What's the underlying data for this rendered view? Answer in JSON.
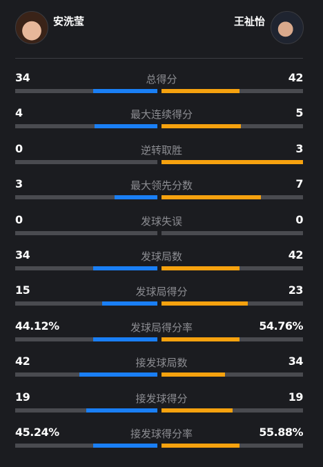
{
  "players": {
    "left": {
      "name": "安洗莹"
    },
    "right": {
      "name": "王祉怡"
    }
  },
  "colors": {
    "left": "#1a7ff5",
    "right": "#f6a20f",
    "track": "#4a4b50"
  },
  "stats": [
    {
      "label": "总得分",
      "left": "34",
      "right": "42",
      "left_share": 0.45,
      "right_share": 0.55
    },
    {
      "label": "最大连续得分",
      "left": "4",
      "right": "5",
      "left_share": 0.44,
      "right_share": 0.56
    },
    {
      "label": "逆转取胜",
      "left": "0",
      "right": "3",
      "left_share": 0.0,
      "right_share": 1.0
    },
    {
      "label": "最大领先分数",
      "left": "3",
      "right": "7",
      "left_share": 0.3,
      "right_share": 0.7
    },
    {
      "label": "发球失误",
      "left": "0",
      "right": "0",
      "left_share": 0.0,
      "right_share": 0.0
    },
    {
      "label": "发球局数",
      "left": "34",
      "right": "42",
      "left_share": 0.45,
      "right_share": 0.55
    },
    {
      "label": "发球局得分",
      "left": "15",
      "right": "23",
      "left_share": 0.39,
      "right_share": 0.61
    },
    {
      "label": "发球局得分率",
      "left": "44.12%",
      "right": "54.76%",
      "left_share": 0.45,
      "right_share": 0.55
    },
    {
      "label": "接发球局数",
      "left": "42",
      "right": "34",
      "left_share": 0.55,
      "right_share": 0.45
    },
    {
      "label": "接发球得分",
      "left": "19",
      "right": "19",
      "left_share": 0.5,
      "right_share": 0.5
    },
    {
      "label": "接发球得分率",
      "left": "45.24%",
      "right": "55.88%",
      "left_share": 0.45,
      "right_share": 0.55
    }
  ]
}
